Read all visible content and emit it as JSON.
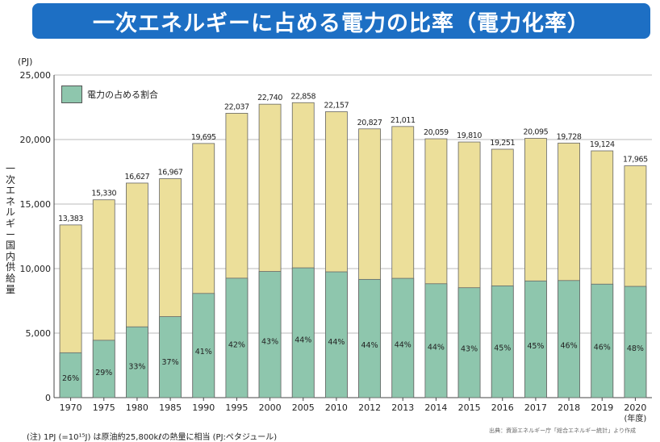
{
  "chart_data": {
    "type": "bar",
    "title": "一次エネルギーに占める電力の比率（電力化率）",
    "unit_label": "(PJ)",
    "ylabel": "一次エネルギー国内供給量",
    "xunit": "(年度)",
    "ylim": [
      0,
      25000
    ],
    "yticks": [
      0,
      5000,
      10000,
      15000,
      20000,
      25000
    ],
    "ytick_labels": [
      "0",
      "5,000",
      "10,000",
      "15,000",
      "20,000",
      "25,000"
    ],
    "categories": [
      "1970",
      "1975",
      "1980",
      "1985",
      "1990",
      "1995",
      "2000",
      "2005",
      "2010",
      "2012",
      "2013",
      "2014",
      "2015",
      "2016",
      "2017",
      "2018",
      "2019",
      "2020"
    ],
    "series": [
      {
        "name": "一次エネルギー国内供給量",
        "color": "#ecdf9a",
        "values": [
          13383,
          15330,
          16627,
          16967,
          19695,
          22037,
          22740,
          22858,
          22157,
          20827,
          21011,
          20059,
          19810,
          19251,
          20095,
          19728,
          19124,
          17965
        ]
      },
      {
        "name": "電力の占める割合",
        "color": "#8ec6ad",
        "values": [
          3480,
          4446,
          5487,
          6278,
          8075,
          9256,
          9778,
          10058,
          9749,
          9164,
          9245,
          8826,
          8518,
          8663,
          9043,
          9075,
          8797,
          8623
        ]
      }
    ],
    "total_labels": [
      "13,383",
      "15,330",
      "16,627",
      "16,967",
      "19,695",
      "22,037",
      "22,740",
      "22,858",
      "22,157",
      "20,827",
      "21,011",
      "20,059",
      "19,810",
      "19,251",
      "20,095",
      "19,728",
      "19,124",
      "17,965"
    ],
    "ratio_labels": [
      "26%",
      "29%",
      "33%",
      "37%",
      "41%",
      "42%",
      "43%",
      "44%",
      "44%",
      "44%",
      "44%",
      "44%",
      "43%",
      "45%",
      "45%",
      "46%",
      "46%",
      "48%"
    ],
    "legend": {
      "label": "電力の占める割合",
      "position": "top-left"
    },
    "grid": true
  },
  "note": "(注) 1PJ (=10¹⁵J) は原油約25,800kℓの熱量に相当 (PJ:ペタジュール)",
  "source": "出典：資源エネルギー庁「総合エネルギー統計」より作成"
}
